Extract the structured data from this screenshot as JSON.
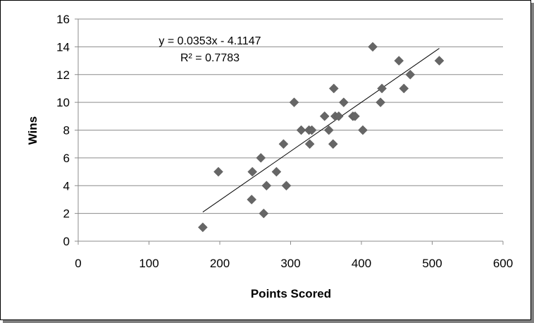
{
  "chart_data": {
    "type": "scatter",
    "xlabel": "Points Scored",
    "ylabel": "Wins",
    "xlim": [
      0,
      600
    ],
    "ylim": [
      0,
      16
    ],
    "x_ticks": [
      0,
      100,
      200,
      300,
      400,
      500,
      600
    ],
    "y_ticks": [
      0,
      2,
      4,
      6,
      8,
      10,
      12,
      14,
      16
    ],
    "grid": "horizontal",
    "marker": "diamond",
    "marker_color": "#666666",
    "points": [
      {
        "x": 176,
        "y": 1
      },
      {
        "x": 198,
        "y": 5
      },
      {
        "x": 245,
        "y": 3
      },
      {
        "x": 246,
        "y": 5
      },
      {
        "x": 258,
        "y": 6
      },
      {
        "x": 262,
        "y": 2
      },
      {
        "x": 266,
        "y": 4
      },
      {
        "x": 280,
        "y": 5
      },
      {
        "x": 290,
        "y": 7
      },
      {
        "x": 294,
        "y": 4
      },
      {
        "x": 305,
        "y": 10
      },
      {
        "x": 315,
        "y": 8
      },
      {
        "x": 326,
        "y": 8
      },
      {
        "x": 327,
        "y": 7
      },
      {
        "x": 330,
        "y": 8
      },
      {
        "x": 348,
        "y": 9
      },
      {
        "x": 354,
        "y": 8
      },
      {
        "x": 360,
        "y": 7
      },
      {
        "x": 361,
        "y": 11
      },
      {
        "x": 363,
        "y": 9
      },
      {
        "x": 368,
        "y": 9
      },
      {
        "x": 375,
        "y": 10
      },
      {
        "x": 388,
        "y": 9
      },
      {
        "x": 391,
        "y": 9
      },
      {
        "x": 402,
        "y": 8
      },
      {
        "x": 416,
        "y": 14
      },
      {
        "x": 427,
        "y": 10
      },
      {
        "x": 429,
        "y": 11
      },
      {
        "x": 453,
        "y": 13
      },
      {
        "x": 460,
        "y": 11
      },
      {
        "x": 469,
        "y": 12
      },
      {
        "x": 510,
        "y": 13
      }
    ],
    "trendline": {
      "slope": 0.0353,
      "intercept": -4.1147,
      "x_range": [
        176,
        510
      ],
      "equation": "y = 0.0353x - 4.1147",
      "r_squared": "R² = 0.7783"
    }
  }
}
